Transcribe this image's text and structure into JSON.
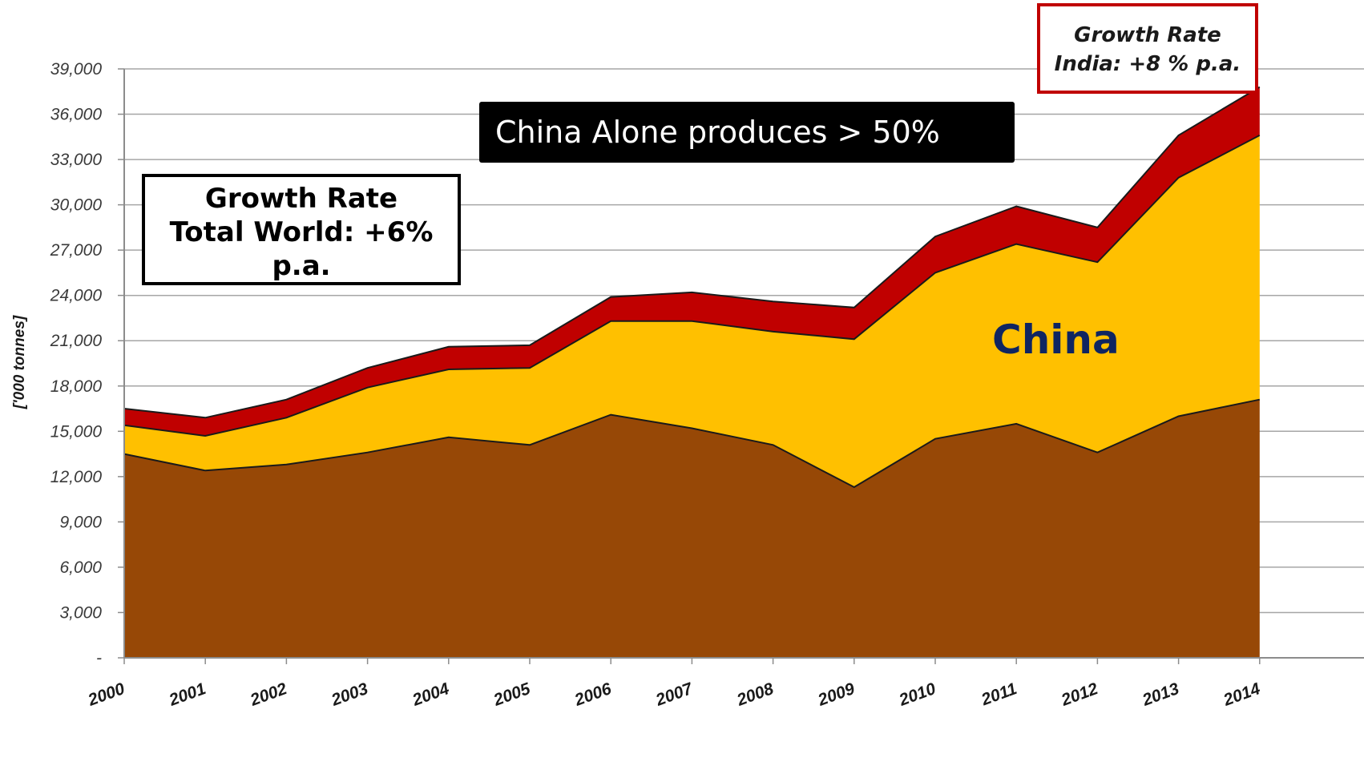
{
  "chart_data": {
    "type": "area",
    "stacked": true,
    "x": [
      "2000",
      "2001",
      "2002",
      "2003",
      "2004",
      "2005",
      "2006",
      "2007",
      "2008",
      "2009",
      "2010",
      "2011",
      "2012",
      "2013",
      "2014"
    ],
    "series": [
      {
        "name": "",
        "color": "#974806",
        "values": [
          13500,
          12400,
          12800,
          13600,
          14600,
          14100,
          16100,
          15200,
          14100,
          11300,
          14500,
          15500,
          13600,
          16000,
          17100
        ]
      },
      {
        "name": "China",
        "color": "#ffc000",
        "values": [
          1900,
          2300,
          3100,
          4300,
          4500,
          5100,
          6200,
          7100,
          7500,
          9800,
          11000,
          11900,
          12600,
          15800,
          17500
        ]
      },
      {
        "name": "",
        "color": "#c00000",
        "values": [
          1100,
          1200,
          1200,
          1300,
          1500,
          1500,
          1600,
          1900,
          2000,
          2100,
          2400,
          2500,
          2300,
          2800,
          3200
        ]
      }
    ],
    "ylabel": "['000 tonnes]",
    "xlabel": "",
    "ylim": [
      0,
      39000
    ],
    "yticks": [
      0,
      3000,
      6000,
      9000,
      12000,
      15000,
      18000,
      21000,
      24000,
      27000,
      30000,
      33000,
      36000,
      39000
    ],
    "ytick_labels": [
      "-",
      "3,000",
      "6,000",
      "9,000",
      "12,000",
      "15,000",
      "18,000",
      "21,000",
      "24,000",
      "27,000",
      "30,000",
      "33,000",
      "36,000",
      "39,000"
    ],
    "grid": true,
    "legend": "none",
    "annotations": {
      "banner": "China Alone produces > 50%",
      "world_growth": [
        "Growth Rate",
        "Total World: +6%",
        "p.a."
      ],
      "india_growth": [
        "Growth Rate",
        "India: +8 % p.a."
      ],
      "series_label": "China"
    }
  }
}
